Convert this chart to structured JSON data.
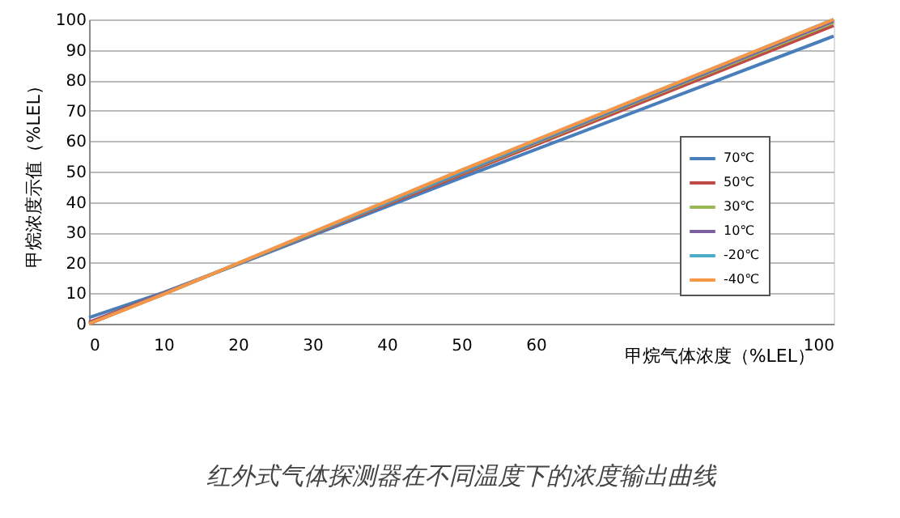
{
  "chart_data": {
    "type": "line",
    "title": "红外式气体探测器在不同温度下的浓度输出曲线",
    "xlabel": "甲烷气体浓度（%LEL）",
    "ylabel": "甲烷浓度示值（%LEL）",
    "x": [
      0,
      10,
      20,
      50,
      100
    ],
    "series": [
      {
        "name": "70℃",
        "color": "#4a7ebb",
        "values": [
          2,
          10.3,
          19.5,
          48,
          94.5
        ]
      },
      {
        "name": "50℃",
        "color": "#be4b48",
        "values": [
          0.5,
          10,
          19.7,
          49,
          98
        ]
      },
      {
        "name": "30℃",
        "color": "#98b954",
        "values": [
          0,
          9.8,
          19.8,
          49.5,
          99
        ]
      },
      {
        "name": "10℃",
        "color": "#7d60a0",
        "values": [
          0,
          9.8,
          19.8,
          49.7,
          99.5
        ]
      },
      {
        "name": "-20℃",
        "color": "#4bacc6",
        "values": [
          0,
          9.7,
          19.8,
          50,
          100
        ]
      },
      {
        "name": "-40℃",
        "color": "#f79646",
        "values": [
          0,
          9.7,
          19.9,
          50.5,
          100
        ]
      }
    ],
    "xlim": [
      0,
      100
    ],
    "ylim": [
      0,
      100
    ],
    "xticks": [
      0,
      10,
      20,
      30,
      40,
      50,
      60,
      100
    ],
    "yticks": [
      0,
      10,
      20,
      30,
      40,
      50,
      60,
      70,
      80,
      90,
      100
    ],
    "grid": "y",
    "legend": "right",
    "marker": "none",
    "line_style": "solid"
  }
}
